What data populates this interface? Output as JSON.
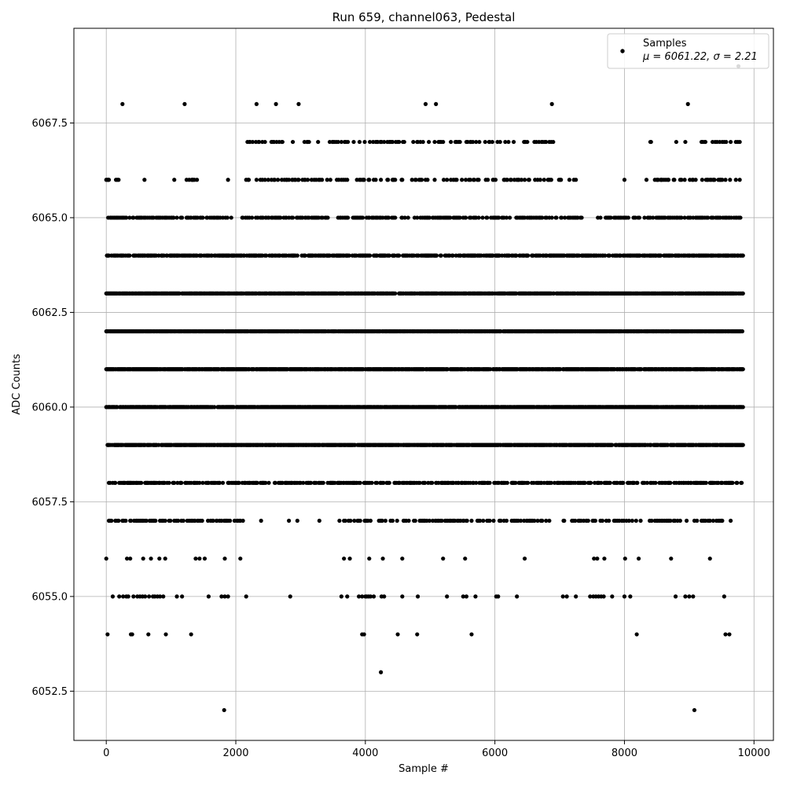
{
  "chart_data": {
    "type": "scatter",
    "title": "Run 659, channel063, Pedestal",
    "xlabel": "Sample #",
    "ylabel": "ADC Counts",
    "xlim": [
      -500,
      10300
    ],
    "ylim": [
      6051.2,
      6070.0
    ],
    "x_ticks": [
      0,
      2000,
      4000,
      6000,
      8000,
      10000
    ],
    "x_tick_labels": [
      "0",
      "2000",
      "4000",
      "6000",
      "8000",
      "10000"
    ],
    "y_ticks": [
      6052.5,
      6055.0,
      6057.5,
      6060.0,
      6062.5,
      6065.0,
      6067.5
    ],
    "y_tick_labels": [
      "6052.5",
      "6055.0",
      "6057.5",
      "6060.0",
      "6062.5",
      "6065.0",
      "6067.5"
    ],
    "grid": true,
    "legend": {
      "position": "top-right",
      "label": "Samples",
      "stats": "μ = 6061.22, σ = 2.21"
    },
    "marker_color": "#000000",
    "sample_count": 9840,
    "series": [
      {
        "name": "Samples",
        "level_frequency": [
          {
            "y": 6052,
            "x": [
              1820,
              9080
            ]
          },
          {
            "y": 6053,
            "x": [
              4240
            ]
          },
          {
            "y": 6054,
            "x": [
              20,
              380,
              400,
              650,
              920,
              1310,
              3950,
              3980,
              4500,
              4800,
              5640,
              8190,
              9560,
              9620
            ]
          },
          {
            "y": 6055,
            "x": [
              100,
              200,
              260,
              310,
              340,
              420,
              480,
              520,
              560,
              600,
              660,
              720,
              750,
              790,
              830,
              880,
              1090,
              1170,
              1580,
              1780,
              1830,
              1880,
              2160,
              2840,
              3630,
              3720,
              3900,
              3950,
              4000,
              4020,
              4050,
              4080,
              4130,
              4250,
              4290,
              4570,
              4810,
              5260,
              5510,
              5560,
              5700,
              6020,
              6050,
              6340,
              7050,
              7110,
              7250,
              7470,
              7520,
              7560,
              7600,
              7640,
              7680,
              7810,
              8000,
              8090,
              8790,
              8940,
              9000,
              9060,
              9540
            ]
          },
          {
            "y": 6056,
            "x": [
              0,
              320,
              370,
              570,
              690,
              820,
              910,
              1380,
              1440,
              1520,
              1830,
              2070,
              3670,
              3760,
              4060,
              4270,
              4570,
              5200,
              5540,
              6460,
              7530,
              7580,
              7690,
              8010,
              8220,
              8720,
              9320
            ]
          },
          {
            "y": 6058,
            "freq": 0.45,
            "seed": 13
          },
          {
            "y": 6057,
            "freq": 0.34,
            "seed": 12,
            "xmax": 9700,
            "gaps": [
              [
                2120,
                3650
              ],
              [
                6800,
                7050
              ]
            ],
            "gap_freq": 0.03
          },
          {
            "y": 6059,
            "freq": 0.78,
            "seed": 14
          },
          {
            "y": 6060,
            "freq": 0.85,
            "seed": 15
          },
          {
            "y": 6061,
            "freq": 0.86,
            "seed": 16
          },
          {
            "y": 6062,
            "freq": 0.86,
            "seed": 17
          },
          {
            "y": 6063,
            "freq": 0.8,
            "seed": 18
          },
          {
            "y": 6064,
            "freq": 0.55,
            "seed": 19
          },
          {
            "y": 6065,
            "freq": 0.44,
            "seed": 20,
            "gaps": [
              [
                1950,
                2100
              ],
              [
                7400,
                7700
              ]
            ],
            "gap_freq": 0.05
          },
          {
            "y": 6066,
            "freq": 0.26,
            "seed": 21,
            "gaps": [
              [
                200,
                1050
              ],
              [
                1450,
                2100
              ],
              [
                7300,
                8300
              ]
            ],
            "gap_freq": 0.025
          },
          {
            "y": 6067,
            "freq": 0.18,
            "seed": 22,
            "gaps": [
              [
                0,
                2150
              ],
              [
                6950,
                8300
              ]
            ],
            "gap_freq": 0.002
          },
          {
            "y": 6068,
            "x": [
              250,
              1210,
              2320,
              2620,
              2970,
              4930,
              5090,
              6880,
              8980
            ]
          },
          {
            "y": 6069,
            "x": [
              9760
            ]
          }
        ]
      }
    ]
  }
}
